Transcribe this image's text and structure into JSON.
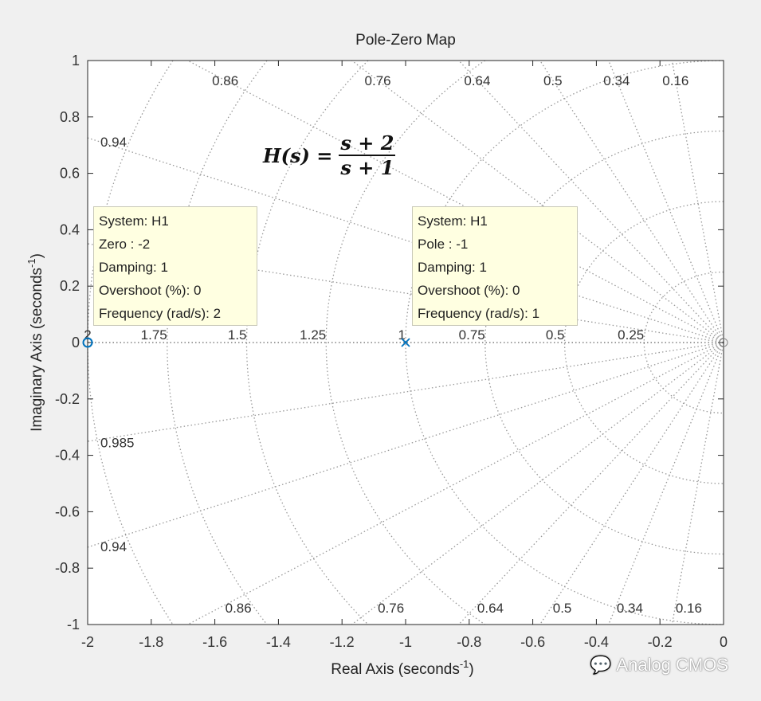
{
  "chart_data": {
    "type": "scatter",
    "title": "Pole-Zero Map",
    "xlabel": "Real Axis (seconds",
    "xlabel_sup": "-1",
    "ylabel": "Imaginary Axis (seconds",
    "ylabel_sup": "-1",
    "xlim": [
      -2,
      0
    ],
    "ylim": [
      -1,
      1
    ],
    "xticks": [
      "-2",
      "-1.8",
      "-1.6",
      "-1.4",
      "-1.2",
      "-1",
      "-0.8",
      "-0.6",
      "-0.4",
      "-0.2",
      "0"
    ],
    "xtick_values": [
      -2,
      -1.8,
      -1.6,
      -1.4,
      -1.2,
      -1,
      -0.8,
      -0.6,
      -0.4,
      -0.2,
      0
    ],
    "yticks": [
      "1",
      "0.8",
      "0.6",
      "0.4",
      "0.2",
      "0",
      "-0.2",
      "-0.4",
      "-0.6",
      "-0.8",
      "-1"
    ],
    "ytick_values": [
      1,
      0.8,
      0.6,
      0.4,
      0.2,
      0,
      -0.2,
      -0.4,
      -0.6,
      -0.8,
      -1
    ],
    "grid": true,
    "damping_lines": [
      0.16,
      0.34,
      0.5,
      0.64,
      0.76,
      0.86,
      0.94,
      0.985
    ],
    "damping_labels": [
      "0.16",
      "0.34",
      "0.5",
      "0.64",
      "0.76",
      "0.86",
      "0.94",
      "0.985"
    ],
    "frequency_circles": [
      0.25,
      0.5,
      0.75,
      1,
      1.25,
      1.5,
      1.75,
      2
    ],
    "frequency_labels": [
      "0.25",
      "0.5",
      "0.75",
      "1",
      "1.25",
      "1.5",
      "1.75",
      "2"
    ],
    "series": [
      {
        "name": "H1 zeros",
        "marker": "o",
        "color": "#0072bd",
        "points": [
          [
            -2,
            0
          ]
        ]
      },
      {
        "name": "H1 poles",
        "marker": "x",
        "color": "#0072bd",
        "points": [
          [
            -1,
            0
          ]
        ]
      }
    ],
    "annotation": {
      "lhs": "H(s) = ",
      "num": "s + 2",
      "den": "s + 1"
    }
  },
  "datatips": [
    {
      "lines": [
        "System: H1",
        "Zero : -2",
        "Damping: 1",
        "Overshoot (%): 0",
        "Frequency (rad/s): 2"
      ]
    },
    {
      "lines": [
        "System: H1",
        "Pole : -1",
        "Damping: 1",
        "Overshoot (%): 0",
        "Frequency (rad/s): 1"
      ]
    }
  ],
  "watermark": "Analog CMOS"
}
